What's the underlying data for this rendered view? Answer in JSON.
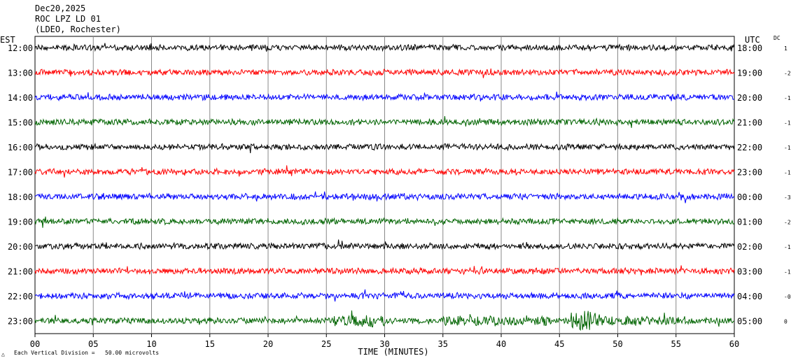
{
  "header": {
    "date": "Dec20,2025",
    "station": "ROC LPZ LD 01",
    "location": "(LDEO, Rochester)"
  },
  "footer": {
    "mark": "△",
    "scale_note": "Each Vertical Division =   50.00 microvolts"
  },
  "chart_data": {
    "type": "line",
    "title": "",
    "xlabel": "TIME (MINUTES)",
    "left_axis_label": "EST",
    "right_axis_label": "UTC",
    "dc_label": "DC",
    "xlim": [
      0,
      60
    ],
    "x_ticks": [
      0,
      5,
      10,
      15,
      20,
      25,
      30,
      35,
      40,
      45,
      50,
      55,
      60
    ],
    "x_tick_labels": [
      "00",
      "05",
      "10",
      "15",
      "20",
      "25",
      "30",
      "35",
      "40",
      "45",
      "50",
      "55",
      "60"
    ],
    "grid": true,
    "trace_colors": [
      "#000000",
      "#ff0000",
      "#0000ff",
      "#006400"
    ],
    "rows": [
      {
        "est": "12:00",
        "utc": "18:00",
        "dc": "1"
      },
      {
        "est": "13:00",
        "utc": "19:00",
        "dc": "-2"
      },
      {
        "est": "14:00",
        "utc": "20:00",
        "dc": "-1"
      },
      {
        "est": "15:00",
        "utc": "21:00",
        "dc": "-1"
      },
      {
        "est": "16:00",
        "utc": "22:00",
        "dc": "-1"
      },
      {
        "est": "17:00",
        "utc": "23:00",
        "dc": "-1"
      },
      {
        "est": "18:00",
        "utc": "00:00",
        "dc": "-3"
      },
      {
        "est": "19:00",
        "utc": "01:00",
        "dc": "-2"
      },
      {
        "est": "20:00",
        "utc": "02:00",
        "dc": "-1"
      },
      {
        "est": "21:00",
        "utc": "03:00",
        "dc": "-1"
      },
      {
        "est": "22:00",
        "utc": "04:00",
        "dc": "-0"
      },
      {
        "est": "23:00",
        "utc": "05:00",
        "dc": "0"
      }
    ]
  }
}
